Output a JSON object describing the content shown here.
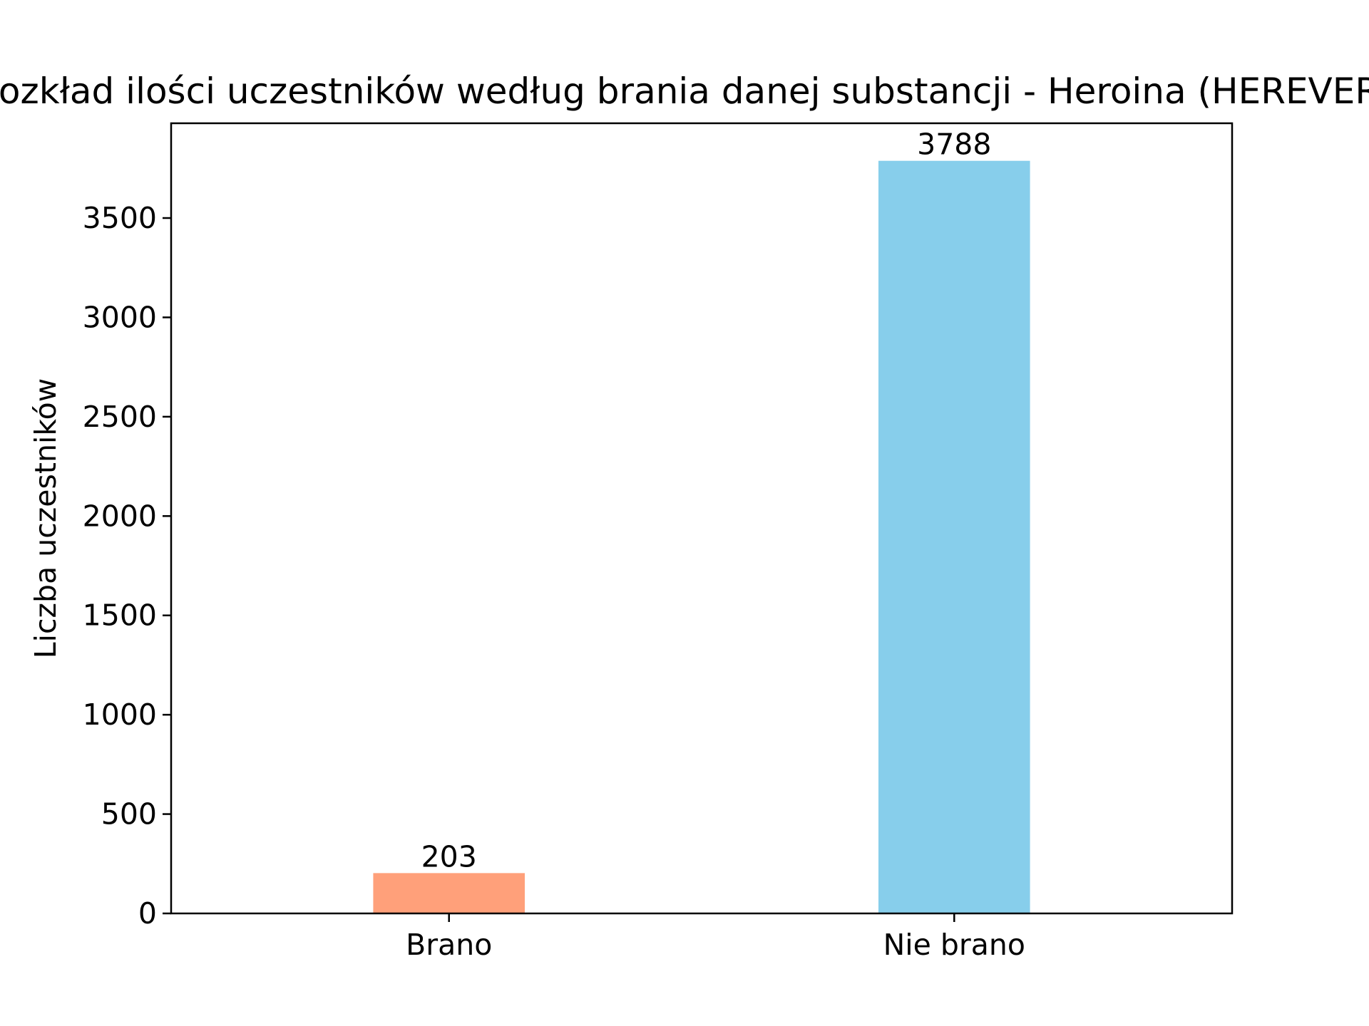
{
  "chart_data": {
    "type": "bar",
    "title": "Rozkład ilości uczestników według brania danej substancji - Heroina (HEREVER)",
    "xlabel": "",
    "ylabel": "Liczba uczestników",
    "categories": [
      "Brano",
      "Nie brano"
    ],
    "values": [
      203,
      3788
    ],
    "data_labels": [
      "203",
      "3788"
    ],
    "colors": [
      "#FFA07A",
      "#87CEEB"
    ],
    "ylim": [
      0,
      3977
    ],
    "yticks": [
      0,
      500,
      1000,
      1500,
      2000,
      2500,
      3000,
      3500
    ],
    "ytick_labels": [
      "0",
      "500",
      "1000",
      "1500",
      "2000",
      "2500",
      "3000",
      "3500"
    ],
    "grid": false,
    "legend": "none"
  }
}
